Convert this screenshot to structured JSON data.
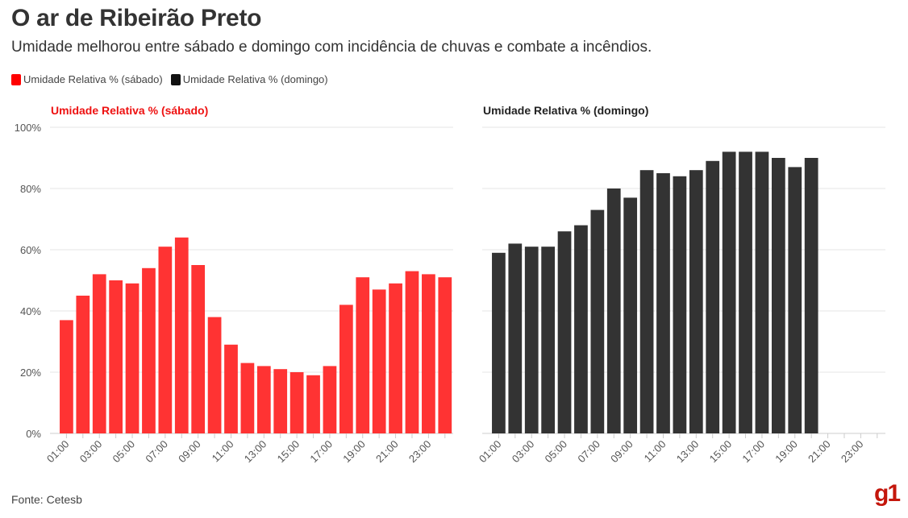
{
  "header": {
    "title": "O ar de Ribeirão Preto",
    "subtitle": "Umidade melhorou entre sábado e domingo com incidência de chuvas e combate a incêndios."
  },
  "legend": [
    {
      "label": "Umidade Relativa % (sábado)",
      "color": "#ff3333"
    },
    {
      "label": "Umidade Relativa % (domingo)",
      "color": "#333333"
    }
  ],
  "footer": {
    "source": "Fonte: Cetesb",
    "logo_text": "g1"
  },
  "chart_data": [
    {
      "type": "bar",
      "title": "Umidade Relativa % (sábado)",
      "title_color": "#ee1111",
      "color": "#ff3333",
      "categories": [
        "01:00",
        "02:00",
        "03:00",
        "04:00",
        "05:00",
        "06:00",
        "07:00",
        "08:00",
        "09:00",
        "10:00",
        "11:00",
        "12:00",
        "13:00",
        "14:00",
        "15:00",
        "16:00",
        "17:00",
        "18:00",
        "19:00",
        "20:00",
        "21:00",
        "22:00",
        "23:00",
        "24:00"
      ],
      "tick_labels": [
        "01:00",
        "03:00",
        "05:00",
        "07:00",
        "09:00",
        "11:00",
        "13:00",
        "15:00",
        "17:00",
        "19:00",
        "21:00",
        "23:00"
      ],
      "values": [
        37,
        45,
        52,
        50,
        49,
        54,
        61,
        64,
        55,
        38,
        29,
        23,
        22,
        21,
        20,
        19,
        22,
        42,
        51,
        47,
        49,
        53,
        52,
        51
      ],
      "ylim": [
        0,
        100
      ],
      "yticks": [
        "0%",
        "20%",
        "40%",
        "60%",
        "80%",
        "100%"
      ],
      "grid": true
    },
    {
      "type": "bar",
      "title": "Umidade Relativa % (domingo)",
      "title_color": "#222222",
      "color": "#333333",
      "categories": [
        "01:00",
        "02:00",
        "03:00",
        "04:00",
        "05:00",
        "06:00",
        "07:00",
        "08:00",
        "09:00",
        "10:00",
        "11:00",
        "12:00",
        "13:00",
        "14:00",
        "15:00",
        "16:00",
        "17:00",
        "18:00",
        "19:00",
        "20:00",
        "21:00",
        "22:00",
        "23:00",
        "24:00"
      ],
      "tick_labels": [
        "01:00",
        "03:00",
        "05:00",
        "07:00",
        "09:00",
        "11:00",
        "13:00",
        "15:00",
        "17:00",
        "19:00",
        "21:00",
        "23:00"
      ],
      "values": [
        59,
        62,
        61,
        61,
        66,
        68,
        73,
        80,
        77,
        86,
        85,
        84,
        86,
        89,
        92,
        92,
        92,
        90,
        87,
        90,
        null,
        null,
        null,
        null
      ],
      "ylim": [
        0,
        100
      ],
      "grid": true
    }
  ]
}
